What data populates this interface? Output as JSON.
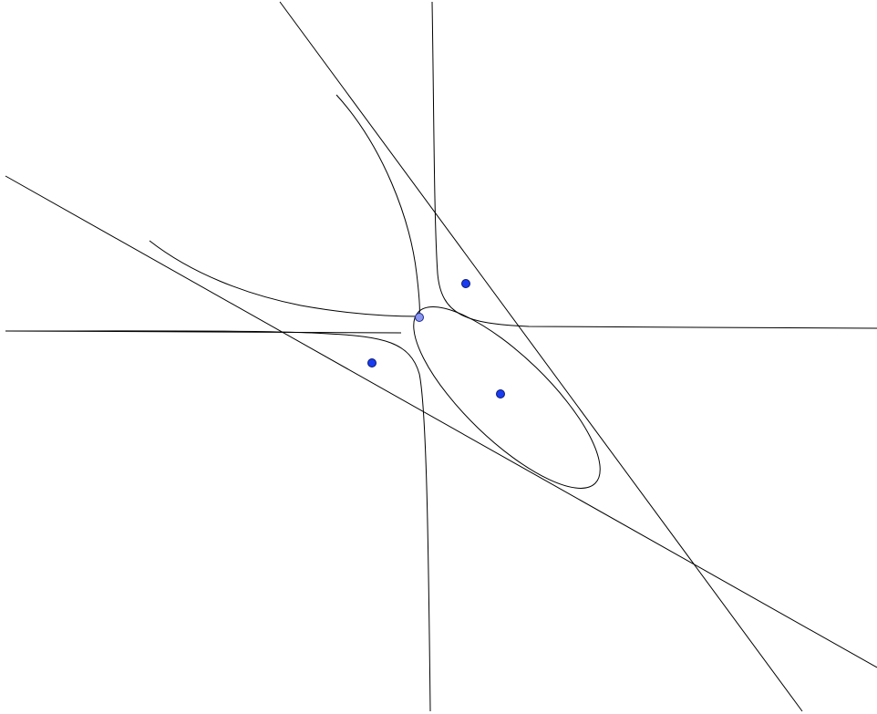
{
  "figure": {
    "background": "#ffffff",
    "stroke_color": "#000000",
    "point_fill": "#1a3cf0",
    "point_stroke": "#0a1a6e",
    "vertex_fill": "#8a96f0",
    "elements": {
      "lines": 3,
      "curves": [
        "vertical-hyperbola-branch",
        "upper-left-hyperbola-branch",
        "upper-right-hyperbola-branch",
        "lower-left-hyperbola-branch",
        "ellipse"
      ],
      "points": [
        "point-upper-right",
        "point-lower-left",
        "point-ellipse-center",
        "vertex-point"
      ]
    }
  }
}
